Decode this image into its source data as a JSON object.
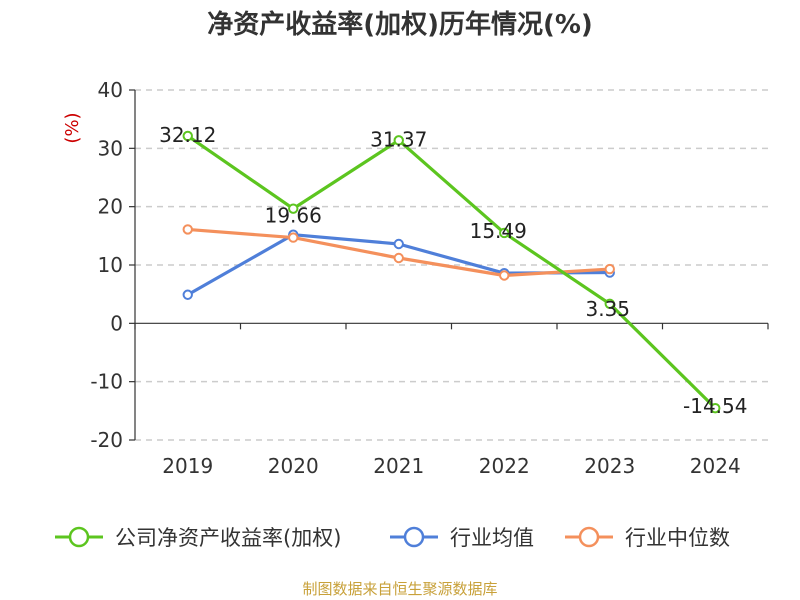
{
  "chart_data": {
    "type": "line",
    "title": "净资产收益率(加权)历年情况(%)",
    "ylabel": "(%)",
    "categories": [
      "2019",
      "2020",
      "2021",
      "2022",
      "2023",
      "2024"
    ],
    "ylim": [
      -20,
      40
    ],
    "yticks": [
      40,
      30,
      20,
      10,
      0,
      -10,
      -20
    ],
    "grid": true,
    "legend_position": "bottom",
    "series": [
      {
        "name": "公司净资产收益率(加权)",
        "color": "#5cc51f",
        "values": [
          32.12,
          19.66,
          31.37,
          15.49,
          3.35,
          -14.54
        ],
        "labels": [
          "32.12",
          "19.66",
          "31.37",
          "15.49",
          "3.35",
          "-14.54"
        ]
      },
      {
        "name": "行业均值",
        "color": "#4f7fd9",
        "values": [
          4.9,
          15.2,
          13.6,
          8.6,
          8.7,
          null
        ]
      },
      {
        "name": "行业中位数",
        "color": "#f4905c",
        "values": [
          16.1,
          14.7,
          11.2,
          8.2,
          9.3,
          null
        ]
      }
    ]
  },
  "footer": {
    "source": "制图数据来自恒生聚源数据库"
  }
}
